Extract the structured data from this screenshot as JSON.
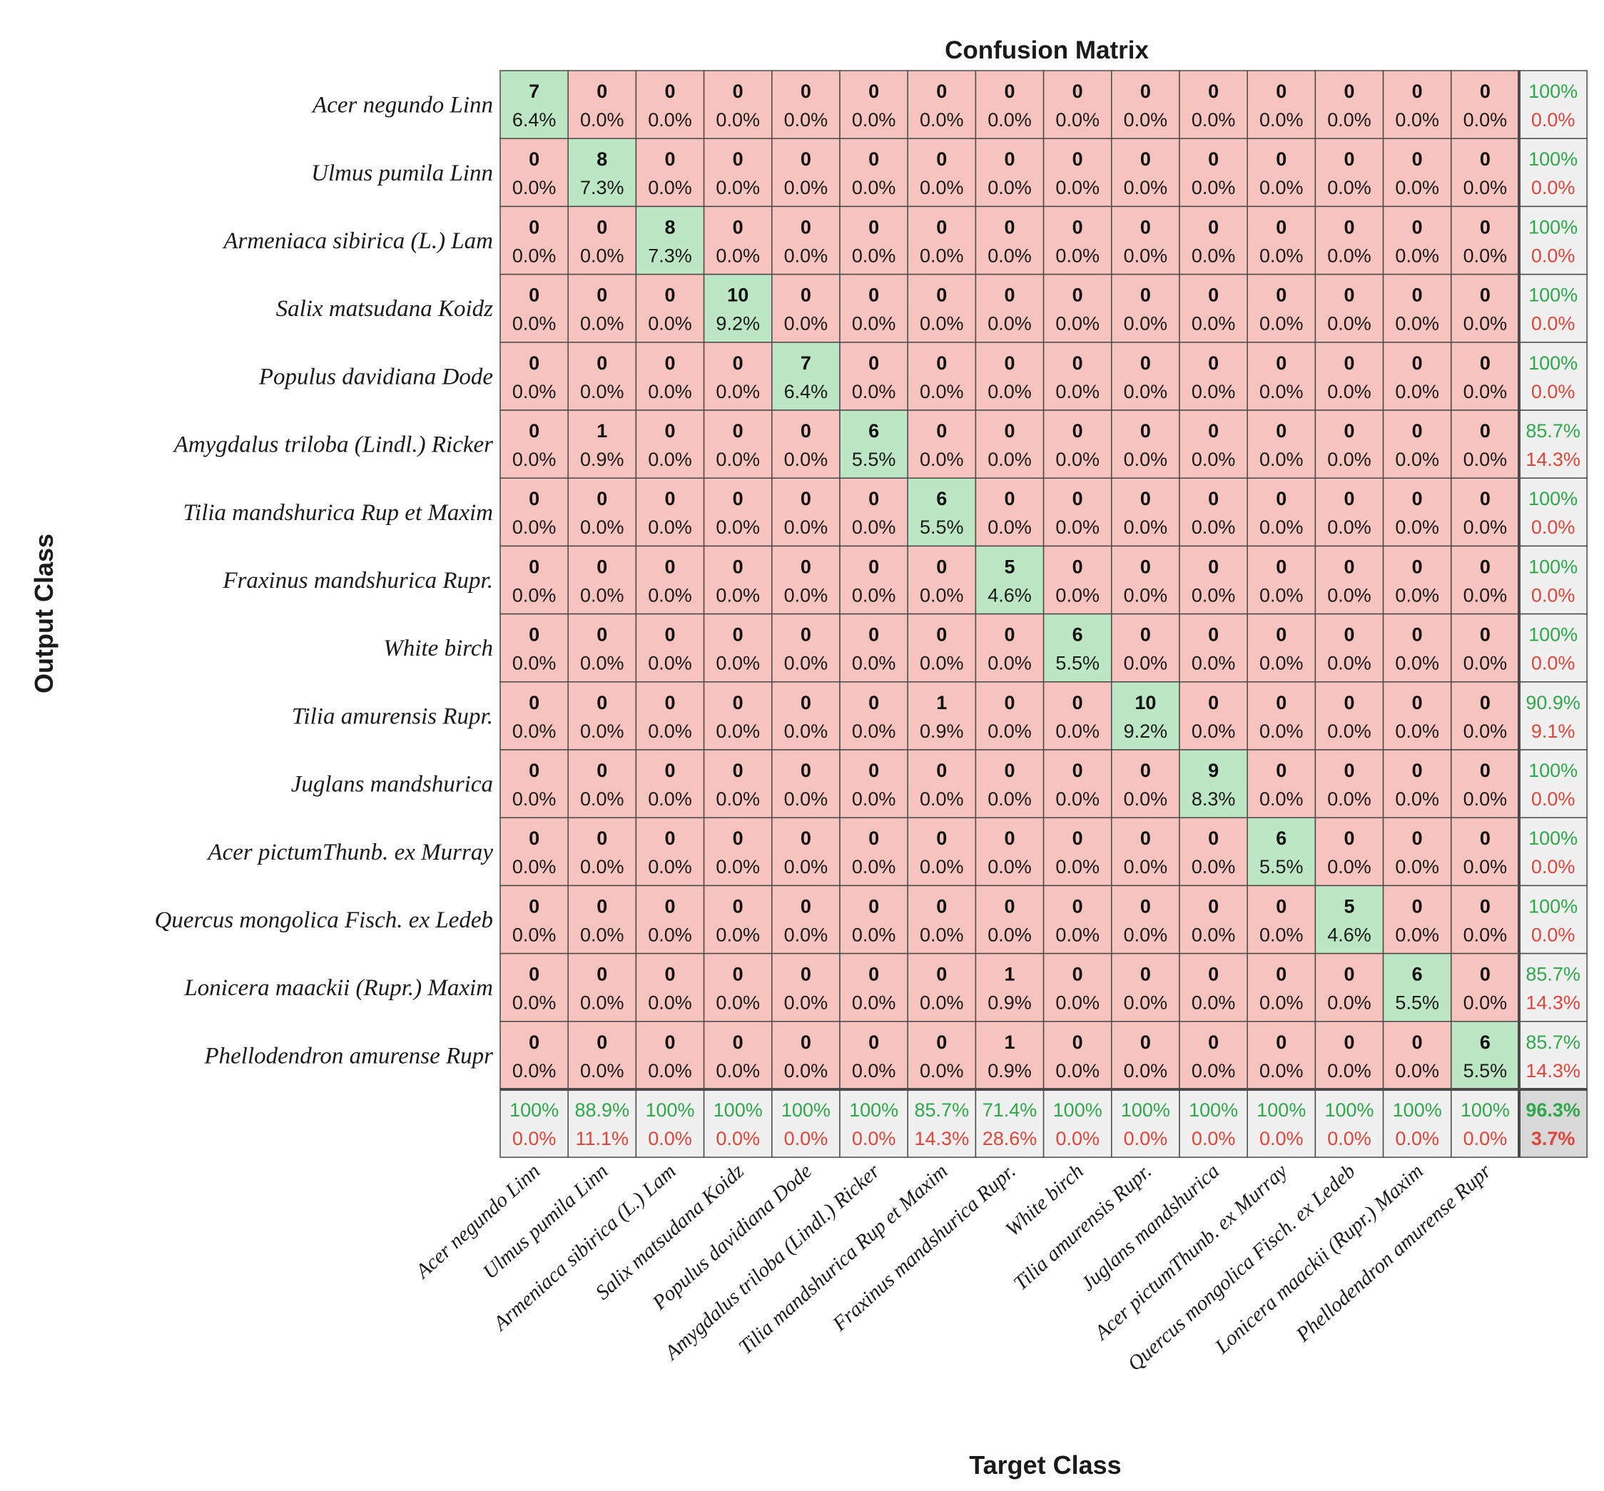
{
  "chart_data": {
    "type": "heatmap",
    "title": "Confusion Matrix",
    "xlabel": "Target Class",
    "ylabel": "Output Class",
    "classes": [
      "Acer negundo Linn",
      "Ulmus pumila Linn",
      "Armeniaca sibirica (L.) Lam",
      "Salix matsudana Koidz",
      "Populus davidiana Dode",
      "Amygdalus triloba (Lindl.) Ricker",
      "Tilia mandshurica Rup et Maxim",
      "Fraxinus mandshurica Rupr.",
      "White birch",
      "Tilia amurensis Rupr.",
      "Juglans mandshurica",
      "Acer pictumThunb. ex Murray",
      "Quercus mongolica Fisch. ex Ledeb",
      "Lonicera maackii (Rupr.) Maxim",
      "Phellodendron amurense Rupr"
    ],
    "counts": [
      [
        7,
        0,
        0,
        0,
        0,
        0,
        0,
        0,
        0,
        0,
        0,
        0,
        0,
        0,
        0
      ],
      [
        0,
        8,
        0,
        0,
        0,
        0,
        0,
        0,
        0,
        0,
        0,
        0,
        0,
        0,
        0
      ],
      [
        0,
        0,
        8,
        0,
        0,
        0,
        0,
        0,
        0,
        0,
        0,
        0,
        0,
        0,
        0
      ],
      [
        0,
        0,
        0,
        10,
        0,
        0,
        0,
        0,
        0,
        0,
        0,
        0,
        0,
        0,
        0
      ],
      [
        0,
        0,
        0,
        0,
        7,
        0,
        0,
        0,
        0,
        0,
        0,
        0,
        0,
        0,
        0
      ],
      [
        0,
        1,
        0,
        0,
        0,
        6,
        0,
        0,
        0,
        0,
        0,
        0,
        0,
        0,
        0
      ],
      [
        0,
        0,
        0,
        0,
        0,
        0,
        6,
        0,
        0,
        0,
        0,
        0,
        0,
        0,
        0
      ],
      [
        0,
        0,
        0,
        0,
        0,
        0,
        0,
        5,
        0,
        0,
        0,
        0,
        0,
        0,
        0
      ],
      [
        0,
        0,
        0,
        0,
        0,
        0,
        0,
        0,
        6,
        0,
        0,
        0,
        0,
        0,
        0
      ],
      [
        0,
        0,
        0,
        0,
        0,
        0,
        1,
        0,
        0,
        10,
        0,
        0,
        0,
        0,
        0
      ],
      [
        0,
        0,
        0,
        0,
        0,
        0,
        0,
        0,
        0,
        0,
        9,
        0,
        0,
        0,
        0
      ],
      [
        0,
        0,
        0,
        0,
        0,
        0,
        0,
        0,
        0,
        0,
        0,
        6,
        0,
        0,
        0
      ],
      [
        0,
        0,
        0,
        0,
        0,
        0,
        0,
        0,
        0,
        0,
        0,
        0,
        5,
        0,
        0
      ],
      [
        0,
        0,
        0,
        0,
        0,
        0,
        0,
        1,
        0,
        0,
        0,
        0,
        0,
        6,
        0
      ],
      [
        0,
        0,
        0,
        0,
        0,
        0,
        0,
        1,
        0,
        0,
        0,
        0,
        0,
        0,
        6
      ]
    ],
    "cell_percents": [
      [
        "6.4%",
        "0.0%",
        "0.0%",
        "0.0%",
        "0.0%",
        "0.0%",
        "0.0%",
        "0.0%",
        "0.0%",
        "0.0%",
        "0.0%",
        "0.0%",
        "0.0%",
        "0.0%",
        "0.0%"
      ],
      [
        "0.0%",
        "7.3%",
        "0.0%",
        "0.0%",
        "0.0%",
        "0.0%",
        "0.0%",
        "0.0%",
        "0.0%",
        "0.0%",
        "0.0%",
        "0.0%",
        "0.0%",
        "0.0%",
        "0.0%"
      ],
      [
        "0.0%",
        "0.0%",
        "7.3%",
        "0.0%",
        "0.0%",
        "0.0%",
        "0.0%",
        "0.0%",
        "0.0%",
        "0.0%",
        "0.0%",
        "0.0%",
        "0.0%",
        "0.0%",
        "0.0%"
      ],
      [
        "0.0%",
        "0.0%",
        "0.0%",
        "9.2%",
        "0.0%",
        "0.0%",
        "0.0%",
        "0.0%",
        "0.0%",
        "0.0%",
        "0.0%",
        "0.0%",
        "0.0%",
        "0.0%",
        "0.0%"
      ],
      [
        "0.0%",
        "0.0%",
        "0.0%",
        "0.0%",
        "6.4%",
        "0.0%",
        "0.0%",
        "0.0%",
        "0.0%",
        "0.0%",
        "0.0%",
        "0.0%",
        "0.0%",
        "0.0%",
        "0.0%"
      ],
      [
        "0.0%",
        "0.9%",
        "0.0%",
        "0.0%",
        "0.0%",
        "5.5%",
        "0.0%",
        "0.0%",
        "0.0%",
        "0.0%",
        "0.0%",
        "0.0%",
        "0.0%",
        "0.0%",
        "0.0%"
      ],
      [
        "0.0%",
        "0.0%",
        "0.0%",
        "0.0%",
        "0.0%",
        "0.0%",
        "5.5%",
        "0.0%",
        "0.0%",
        "0.0%",
        "0.0%",
        "0.0%",
        "0.0%",
        "0.0%",
        "0.0%"
      ],
      [
        "0.0%",
        "0.0%",
        "0.0%",
        "0.0%",
        "0.0%",
        "0.0%",
        "0.0%",
        "4.6%",
        "0.0%",
        "0.0%",
        "0.0%",
        "0.0%",
        "0.0%",
        "0.0%",
        "0.0%"
      ],
      [
        "0.0%",
        "0.0%",
        "0.0%",
        "0.0%",
        "0.0%",
        "0.0%",
        "0.0%",
        "0.0%",
        "5.5%",
        "0.0%",
        "0.0%",
        "0.0%",
        "0.0%",
        "0.0%",
        "0.0%"
      ],
      [
        "0.0%",
        "0.0%",
        "0.0%",
        "0.0%",
        "0.0%",
        "0.0%",
        "0.9%",
        "0.0%",
        "0.0%",
        "9.2%",
        "0.0%",
        "0.0%",
        "0.0%",
        "0.0%",
        "0.0%"
      ],
      [
        "0.0%",
        "0.0%",
        "0.0%",
        "0.0%",
        "0.0%",
        "0.0%",
        "0.0%",
        "0.0%",
        "0.0%",
        "0.0%",
        "8.3%",
        "0.0%",
        "0.0%",
        "0.0%",
        "0.0%"
      ],
      [
        "0.0%",
        "0.0%",
        "0.0%",
        "0.0%",
        "0.0%",
        "0.0%",
        "0.0%",
        "0.0%",
        "0.0%",
        "0.0%",
        "0.0%",
        "5.5%",
        "0.0%",
        "0.0%",
        "0.0%"
      ],
      [
        "0.0%",
        "0.0%",
        "0.0%",
        "0.0%",
        "0.0%",
        "0.0%",
        "0.0%",
        "0.0%",
        "0.0%",
        "0.0%",
        "0.0%",
        "0.0%",
        "4.6%",
        "0.0%",
        "0.0%"
      ],
      [
        "0.0%",
        "0.0%",
        "0.0%",
        "0.0%",
        "0.0%",
        "0.0%",
        "0.0%",
        "0.9%",
        "0.0%",
        "0.0%",
        "0.0%",
        "0.0%",
        "0.0%",
        "5.5%",
        "0.0%"
      ],
      [
        "0.0%",
        "0.0%",
        "0.0%",
        "0.0%",
        "0.0%",
        "0.0%",
        "0.0%",
        "0.9%",
        "0.0%",
        "0.0%",
        "0.0%",
        "0.0%",
        "0.0%",
        "0.0%",
        "5.5%"
      ]
    ],
    "row_summary": [
      [
        "100%",
        "0.0%"
      ],
      [
        "100%",
        "0.0%"
      ],
      [
        "100%",
        "0.0%"
      ],
      [
        "100%",
        "0.0%"
      ],
      [
        "100%",
        "0.0%"
      ],
      [
        "85.7%",
        "14.3%"
      ],
      [
        "100%",
        "0.0%"
      ],
      [
        "100%",
        "0.0%"
      ],
      [
        "100%",
        "0.0%"
      ],
      [
        "90.9%",
        "9.1%"
      ],
      [
        "100%",
        "0.0%"
      ],
      [
        "100%",
        "0.0%"
      ],
      [
        "100%",
        "0.0%"
      ],
      [
        "85.7%",
        "14.3%"
      ],
      [
        "85.7%",
        "14.3%"
      ]
    ],
    "col_summary": [
      [
        "100%",
        "0.0%"
      ],
      [
        "88.9%",
        "11.1%"
      ],
      [
        "100%",
        "0.0%"
      ],
      [
        "100%",
        "0.0%"
      ],
      [
        "100%",
        "0.0%"
      ],
      [
        "100%",
        "0.0%"
      ],
      [
        "85.7%",
        "14.3%"
      ],
      [
        "71.4%",
        "28.6%"
      ],
      [
        "100%",
        "0.0%"
      ],
      [
        "100%",
        "0.0%"
      ],
      [
        "100%",
        "0.0%"
      ],
      [
        "100%",
        "0.0%"
      ],
      [
        "100%",
        "0.0%"
      ],
      [
        "100%",
        "0.0%"
      ],
      [
        "100%",
        "0.0%"
      ]
    ],
    "overall": [
      "96.3%",
      "3.7%"
    ],
    "colors": {
      "correct": "#bde6c4",
      "incorrect": "#f6c3be",
      "summary": "#f0f0f0",
      "overall": "#d9d9d9",
      "good_text": "#2ea84a",
      "bad_text": "#e0453a",
      "grid": "#4a4a4a"
    }
  }
}
